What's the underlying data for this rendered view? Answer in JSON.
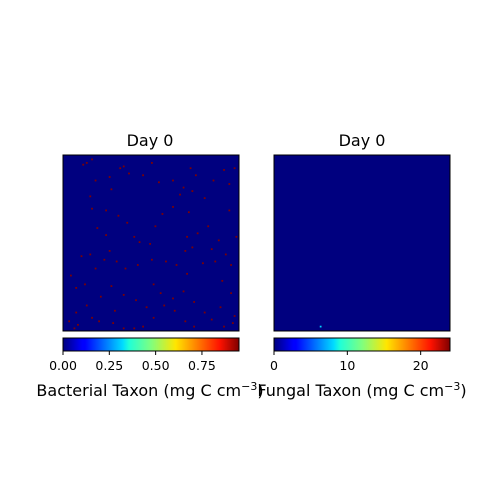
{
  "chart_data": [
    {
      "type": "heatmap",
      "title": "Day 0",
      "colormap": "jet",
      "background_color": "#00007f",
      "colorbar": {
        "label": "Bacterial Taxon (mg C cm$^{-3}$)",
        "label_text": "Bacterial Taxon (mg C cm",
        "label_exponent": "−3",
        "label_close": ")",
        "range": [
          0,
          0.95
        ],
        "ticks": [
          0,
          0.25,
          0.5,
          0.75
        ],
        "tick_labels": [
          "0.00",
          "0.25",
          "0.50",
          "0.75"
        ]
      },
      "grid_size": [
        100,
        100
      ],
      "hotspot_value": 0.95,
      "hotspots": [
        [
          11,
          5
        ],
        [
          13,
          4
        ],
        [
          16,
          2
        ],
        [
          18,
          14
        ],
        [
          15,
          23
        ],
        [
          26,
          12
        ],
        [
          27,
          19
        ],
        [
          32,
          7
        ],
        [
          34,
          6
        ],
        [
          37,
          10
        ],
        [
          45,
          11
        ],
        [
          50,
          4
        ],
        [
          54,
          15
        ],
        [
          62,
          14
        ],
        [
          68,
          18
        ],
        [
          71,
          32
        ],
        [
          75,
          11
        ],
        [
          73,
          20
        ],
        [
          72,
          7
        ],
        [
          80,
          24
        ],
        [
          85,
          14
        ],
        [
          91,
          8
        ],
        [
          94,
          16
        ],
        [
          97,
          7
        ],
        [
          94,
          31
        ],
        [
          98,
          46
        ],
        [
          16,
          30
        ],
        [
          24,
          31
        ],
        [
          31,
          34
        ],
        [
          36,
          38
        ],
        [
          40,
          46
        ],
        [
          43,
          49
        ],
        [
          49,
          50
        ],
        [
          52,
          40
        ],
        [
          56,
          33
        ],
        [
          62,
          29
        ],
        [
          66,
          22
        ],
        [
          70,
          46
        ],
        [
          76,
          44
        ],
        [
          82,
          40
        ],
        [
          88,
          48
        ],
        [
          92,
          56
        ],
        [
          95,
          62
        ],
        [
          84,
          53
        ],
        [
          19,
          41
        ],
        [
          24,
          45
        ],
        [
          26,
          54
        ],
        [
          10,
          57
        ],
        [
          15,
          56
        ],
        [
          18,
          64
        ],
        [
          23,
          59
        ],
        [
          30,
          60
        ],
        [
          35,
          64
        ],
        [
          42,
          62
        ],
        [
          50,
          59
        ],
        [
          51,
          73
        ],
        [
          58,
          60
        ],
        [
          64,
          62
        ],
        [
          69,
          54
        ],
        [
          73,
          52
        ],
        [
          70,
          67
        ],
        [
          79,
          61
        ],
        [
          86,
          60
        ],
        [
          90,
          71
        ],
        [
          95,
          78
        ],
        [
          97,
          91
        ],
        [
          96,
          95
        ],
        [
          91,
          97
        ],
        [
          84,
          93
        ],
        [
          80,
          89
        ],
        [
          74,
          83
        ],
        [
          68,
          77
        ],
        [
          62,
          81
        ],
        [
          57,
          85
        ],
        [
          51,
          92
        ],
        [
          45,
          97
        ],
        [
          40,
          98
        ],
        [
          34,
          98
        ],
        [
          28,
          95
        ],
        [
          20,
          94
        ],
        [
          16,
          92
        ],
        [
          8,
          96
        ],
        [
          6,
          98
        ],
        [
          3,
          94
        ],
        [
          7,
          89
        ],
        [
          13,
          85
        ],
        [
          21,
          80
        ],
        [
          27,
          74
        ],
        [
          34,
          79
        ],
        [
          41,
          82
        ],
        [
          47,
          86
        ],
        [
          55,
          78
        ],
        [
          63,
          88
        ],
        [
          69,
          94
        ],
        [
          74,
          97
        ],
        [
          89,
          86
        ],
        [
          7,
          75
        ],
        [
          4,
          68
        ],
        [
          12,
          73
        ],
        [
          29,
          88
        ]
      ]
    },
    {
      "type": "heatmap",
      "title": "Day 0",
      "colormap": "jet",
      "background_color": "#00007f",
      "colorbar": {
        "label": "Fungal Taxon (mg C cm$^{-3}$)",
        "label_text": "Fungal Taxon (mg C cm",
        "label_exponent": "−3",
        "label_close": ")",
        "range": [
          0,
          24
        ],
        "ticks": [
          0,
          10,
          20
        ],
        "tick_labels": [
          "0",
          "10",
          "20"
        ]
      },
      "grid_size": [
        100,
        100
      ],
      "hotspot_value": 8,
      "hotspots": [
        [
          26,
          97
        ]
      ]
    }
  ]
}
